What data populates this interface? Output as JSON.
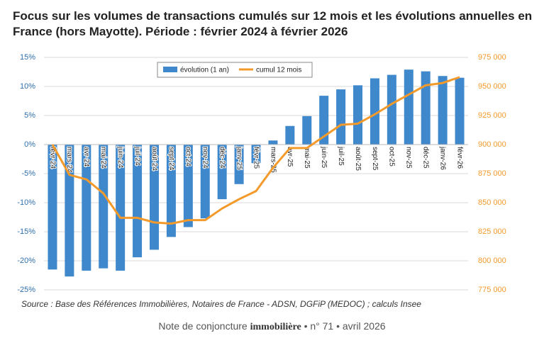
{
  "title": "Focus sur les volumes de transactions cumulés sur 12 mois et les évolutions annuelles en France (hors Mayotte). Période : février 2024 à février 2026",
  "chart_data": {
    "type": "bar-line",
    "categories": [
      "févr-24",
      "mars-24",
      "avr-24",
      "mai-24",
      "juin-24",
      "juil-24",
      "août-24",
      "sept-24",
      "oct-24",
      "nov-24",
      "déc-24",
      "janv-25",
      "févr-25",
      "mars-25",
      "avr-25",
      "mai-25",
      "juin-25",
      "juil-25",
      "août-25",
      "sept-25",
      "oct-25",
      "nov-25",
      "déc-25",
      "janv-26",
      "févr-26"
    ],
    "series": [
      {
        "name": "évolution (1 an)",
        "type": "bar",
        "color": "#3f88cc",
        "values": [
          -21.5,
          -22.7,
          -21.7,
          -21.3,
          -21.7,
          -19.4,
          -18.1,
          -15.9,
          -14.2,
          -12.7,
          -9.4,
          -6.8,
          -3.2,
          0.7,
          3.2,
          4.9,
          8.4,
          9.5,
          10.2,
          11.4,
          12.0,
          12.9,
          12.6,
          11.8,
          11.5
        ]
      },
      {
        "name": "cumul 12 mois",
        "type": "line",
        "axis": "y2",
        "color": "#f39a2b",
        "values": [
          900000,
          874000,
          870000,
          858000,
          837000,
          837000,
          833000,
          832000,
          835000,
          835000,
          845000,
          853000,
          860000,
          880000,
          897000,
          897000,
          907000,
          917000,
          918000,
          926000,
          935000,
          943000,
          951000,
          953000,
          958000
        ]
      }
    ],
    "ylim": [
      -25,
      15
    ],
    "yticks": [
      {
        "value": -25,
        "label": "-25%"
      },
      {
        "value": -20,
        "label": "-20%"
      },
      {
        "value": -15,
        "label": "-15%"
      },
      {
        "value": -10,
        "label": "-10%"
      },
      {
        "value": -5,
        "label": "-5%"
      },
      {
        "value": 0,
        "label": "0%"
      },
      {
        "value": 5,
        "label": "5%"
      },
      {
        "value": 10,
        "label": "10%"
      },
      {
        "value": 15,
        "label": "15%"
      }
    ],
    "y2lim": [
      775000,
      975000
    ],
    "y2ticks": [
      {
        "value": 775000,
        "label": "775 000"
      },
      {
        "value": 800000,
        "label": "800 000"
      },
      {
        "value": 825000,
        "label": "825 000"
      },
      {
        "value": 850000,
        "label": "850 000"
      },
      {
        "value": 875000,
        "label": "875 000"
      },
      {
        "value": 900000,
        "label": "900 000"
      },
      {
        "value": 925000,
        "label": "925 000"
      },
      {
        "value": 950000,
        "label": "950 000"
      },
      {
        "value": 975000,
        "label": "975 000"
      }
    ],
    "grid": true
  },
  "source": "Source : Base des Références Immobilières, Notaires de France - ADSN, DGFiP (MEDOC) ; calculs Insee",
  "footer": {
    "prefix": "Note de conjoncture",
    "brand": "immobilière",
    "suffix": "• n° 71 • avril 2026"
  }
}
